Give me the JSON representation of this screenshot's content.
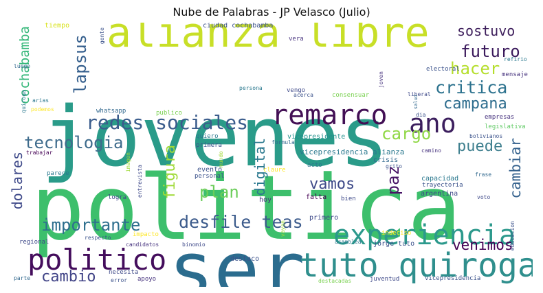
{
  "chart_data": {
    "type": "wordcloud",
    "title": "Nube de Palabras - JP Velasco (Julio)",
    "words": [
      {
        "text": "jovenes",
        "weight": 100,
        "color": "#2a9b89",
        "rotate": false
      },
      {
        "text": "politica",
        "weight": 100,
        "color": "#3dbf6c",
        "rotate": false
      },
      {
        "text": "ser",
        "weight": 70,
        "color": "#2b6c8e",
        "rotate": false
      },
      {
        "text": "alianza libre",
        "weight": 60,
        "color": "#c8df27",
        "rotate": false
      },
      {
        "text": "tuto quiroga",
        "weight": 45,
        "color": "#2f8f8d",
        "rotate": false
      },
      {
        "text": "experiencia",
        "weight": 40,
        "color": "#2c998c",
        "rotate": false
      },
      {
        "text": "politico",
        "weight": 40,
        "color": "#440d5c",
        "rotate": false
      },
      {
        "text": "remarco",
        "weight": 38,
        "color": "#431055",
        "rotate": false
      },
      {
        "text": "ano",
        "weight": 36,
        "color": "#3c1f5e",
        "rotate": false
      },
      {
        "text": "redes sociales",
        "weight": 28,
        "color": "#3a5c8c",
        "rotate": false
      },
      {
        "text": "critica",
        "weight": 24,
        "color": "#2c728e",
        "rotate": false
      },
      {
        "text": "hacer",
        "weight": 24,
        "color": "#b5de2c",
        "rotate": false
      },
      {
        "text": "futuro",
        "weight": 22,
        "color": "#3b1a5c",
        "rotate": false
      },
      {
        "text": "sostuvo",
        "weight": 20,
        "color": "#3e1f5c",
        "rotate": false
      },
      {
        "text": "campana",
        "weight": 22,
        "color": "#2e6d8e",
        "rotate": false
      },
      {
        "text": "cargo",
        "weight": 22,
        "color": "#8fd744",
        "rotate": false
      },
      {
        "text": "puede",
        "weight": 20,
        "color": "#3e7f8e",
        "rotate": false
      },
      {
        "text": "tecnologia",
        "weight": 22,
        "color": "#3e6b8c",
        "rotate": false
      },
      {
        "text": "importante",
        "weight": 22,
        "color": "#2e6f8e",
        "rotate": false
      },
      {
        "text": "desfile teas",
        "weight": 24,
        "color": "#3b5a8b",
        "rotate": false
      },
      {
        "text": "plan",
        "weight": 22,
        "color": "#6ccd5a",
        "rotate": false
      },
      {
        "text": "vamos",
        "weight": 20,
        "color": "#3e4a89",
        "rotate": false
      },
      {
        "text": "cambio",
        "weight": 22,
        "color": "#414487",
        "rotate": false
      },
      {
        "text": "venimos",
        "weight": 20,
        "color": "#440154",
        "rotate": false
      },
      {
        "text": "lapsus",
        "weight": 22,
        "color": "#355f8d",
        "rotate": true
      },
      {
        "text": "cochabamba",
        "weight": 18,
        "color": "#35b779",
        "rotate": true
      },
      {
        "text": "figura",
        "weight": 20,
        "color": "#a0da39",
        "rotate": true
      },
      {
        "text": "digital",
        "weight": 18,
        "color": "#2a788e",
        "rotate": true
      },
      {
        "text": "paz",
        "weight": 22,
        "color": "#471365",
        "rotate": true
      },
      {
        "text": "cambiar",
        "weight": 18,
        "color": "#34618d",
        "rotate": true
      },
      {
        "text": "dolares",
        "weight": 18,
        "color": "#3e4989",
        "rotate": true
      },
      {
        "text": "tiempo",
        "weight": 8,
        "color": "#d8e219",
        "rotate": false
      },
      {
        "text": "ciudad cochabamba",
        "weight": 8,
        "color": "#3b528b",
        "rotate": false
      },
      {
        "text": "vera",
        "weight": 7,
        "color": "#46327e",
        "rotate": false
      },
      {
        "text": "refirio",
        "weight": 7,
        "color": "#2a788e",
        "rotate": false
      },
      {
        "text": "electoral",
        "weight": 7,
        "color": "#3b528b",
        "rotate": false
      },
      {
        "text": "mensaje",
        "weight": 7,
        "color": "#46337e",
        "rotate": false
      },
      {
        "text": "luego",
        "weight": 7,
        "color": "#31688e",
        "rotate": false
      },
      {
        "text": "vengo",
        "weight": 7,
        "color": "#3e4989",
        "rotate": false
      },
      {
        "text": "persona",
        "weight": 7,
        "color": "#2a788e",
        "rotate": false
      },
      {
        "text": "acerca",
        "weight": 7,
        "color": "#3b528b",
        "rotate": false
      },
      {
        "text": "consensuar",
        "weight": 7,
        "color": "#7ad151",
        "rotate": false
      },
      {
        "text": "liberal",
        "weight": 7,
        "color": "#3e4989",
        "rotate": false
      },
      {
        "text": "arias",
        "weight": 7,
        "color": "#2a788e",
        "rotate": false
      },
      {
        "text": "podemos",
        "weight": 7,
        "color": "#fde725",
        "rotate": false
      },
      {
        "text": "whatsapp",
        "weight": 7,
        "color": "#31688e",
        "rotate": false
      },
      {
        "text": "publico",
        "weight": 7,
        "color": "#7ad151",
        "rotate": false
      },
      {
        "text": "dia",
        "weight": 7,
        "color": "#3b528b",
        "rotate": false
      },
      {
        "text": "empresas",
        "weight": 7,
        "color": "#46327e",
        "rotate": false
      },
      {
        "text": "legislativa",
        "weight": 7,
        "color": "#5ec962",
        "rotate": false
      },
      {
        "text": "quiero",
        "weight": 7,
        "color": "#2a788e",
        "rotate": false
      },
      {
        "text": "primera",
        "weight": 7,
        "color": "#3b528b",
        "rotate": false
      },
      {
        "text": "formula",
        "weight": 7,
        "color": "#31688e",
        "rotate": false
      },
      {
        "text": "vicepresidente",
        "weight": 8,
        "color": "#21918c",
        "rotate": false
      },
      {
        "text": "bolivianos",
        "weight": 7,
        "color": "#3b528b",
        "rotate": false
      },
      {
        "text": "camino",
        "weight": 7,
        "color": "#46327e",
        "rotate": false
      },
      {
        "text": "trabajar",
        "weight": 7,
        "color": "#440154",
        "rotate": false
      },
      {
        "text": "vicepresidencia alianza",
        "weight": 9,
        "color": "#2a788e",
        "rotate": false
      },
      {
        "text": "crisis",
        "weight": 8,
        "color": "#31688e",
        "rotate": false
      },
      {
        "text": "grito",
        "weight": 7,
        "color": "#3b528b",
        "rotate": false
      },
      {
        "text": "evento",
        "weight": 8,
        "color": "#3b528b",
        "rotate": false
      },
      {
        "text": "personal",
        "weight": 7,
        "color": "#3b528b",
        "rotate": false
      },
      {
        "text": "claure",
        "weight": 7,
        "color": "#fde725",
        "rotate": false
      },
      {
        "text": "acto",
        "weight": 7,
        "color": "#2a788e",
        "rotate": false
      },
      {
        "text": "capacidad",
        "weight": 8,
        "color": "#2a788e",
        "rotate": false
      },
      {
        "text": "frase",
        "weight": 7,
        "color": "#31688e",
        "rotate": false
      },
      {
        "text": "trayectoria",
        "weight": 7,
        "color": "#3b528b",
        "rotate": false
      },
      {
        "text": "parece",
        "weight": 7,
        "color": "#2a788e",
        "rotate": false
      },
      {
        "text": "argentina",
        "weight": 8,
        "color": "#3e4989",
        "rotate": false
      },
      {
        "text": "logra",
        "weight": 7,
        "color": "#3e4989",
        "rotate": false
      },
      {
        "text": "hoy",
        "weight": 8,
        "color": "#46327e",
        "rotate": false
      },
      {
        "text": "falta",
        "weight": 8,
        "color": "#440154",
        "rotate": false
      },
      {
        "text": "bien",
        "weight": 8,
        "color": "#3e4989",
        "rotate": false
      },
      {
        "text": "voto",
        "weight": 7,
        "color": "#3e4989",
        "rotate": false
      },
      {
        "text": "primero",
        "weight": 8,
        "color": "#3e4989",
        "rotate": false
      },
      {
        "text": "indeciso",
        "weight": 7,
        "color": "#fde725",
        "rotate": false
      },
      {
        "text": "regional",
        "weight": 7,
        "color": "#3e4989",
        "rotate": false
      },
      {
        "text": "respecto",
        "weight": 7,
        "color": "#3b528b",
        "rotate": false
      },
      {
        "text": "impacto",
        "weight": 7,
        "color": "#fde725",
        "rotate": false
      },
      {
        "text": "candidatos",
        "weight": 7,
        "color": "#46327e",
        "rotate": false
      },
      {
        "text": "binomio",
        "weight": 7,
        "color": "#3e4989",
        "rotate": false
      },
      {
        "text": "asamblea",
        "weight": 7,
        "color": "#2a788e",
        "rotate": false
      },
      {
        "text": "jorge tuto",
        "weight": 8,
        "color": "#3b528b",
        "rotate": false
      },
      {
        "text": "destaco",
        "weight": 8,
        "color": "#3b528b",
        "rotate": false
      },
      {
        "text": "parte",
        "weight": 7,
        "color": "#31688e",
        "rotate": false
      },
      {
        "text": "necesita",
        "weight": 7,
        "color": "#3e4989",
        "rotate": false
      },
      {
        "text": "error",
        "weight": 7,
        "color": "#3b528b",
        "rotate": false
      },
      {
        "text": "apoyo",
        "weight": 7,
        "color": "#46327e",
        "rotate": false
      },
      {
        "text": "destacadas",
        "weight": 7,
        "color": "#7ad151",
        "rotate": false
      },
      {
        "text": "juventud",
        "weight": 7,
        "color": "#3e4989",
        "rotate": false
      },
      {
        "text": "vicepresidencia",
        "weight": 7,
        "color": "#3b528b",
        "rotate": false
      },
      {
        "text": "gente",
        "weight": 6,
        "color": "#3b528b",
        "rotate": true
      },
      {
        "text": "quiroga",
        "weight": 7,
        "color": "#2a788e",
        "rotate": true
      },
      {
        "text": "joven",
        "weight": 7,
        "color": "#46327e",
        "rotate": true
      },
      {
        "text": "salud",
        "weight": 6,
        "color": "#31688e",
        "rotate": true
      },
      {
        "text": "mundo",
        "weight": 6,
        "color": "#a0da39",
        "rotate": true
      },
      {
        "text": "imagen",
        "weight": 6,
        "color": "#a0da39",
        "rotate": true
      },
      {
        "text": "entrevista",
        "weight": 7,
        "color": "#3e4989",
        "rotate": true
      },
      {
        "text": "vayan",
        "weight": 6,
        "color": "#a0da39",
        "rotate": true
      },
      {
        "text": "educacion",
        "weight": 6,
        "color": "#3b528b",
        "rotate": true
      }
    ]
  }
}
